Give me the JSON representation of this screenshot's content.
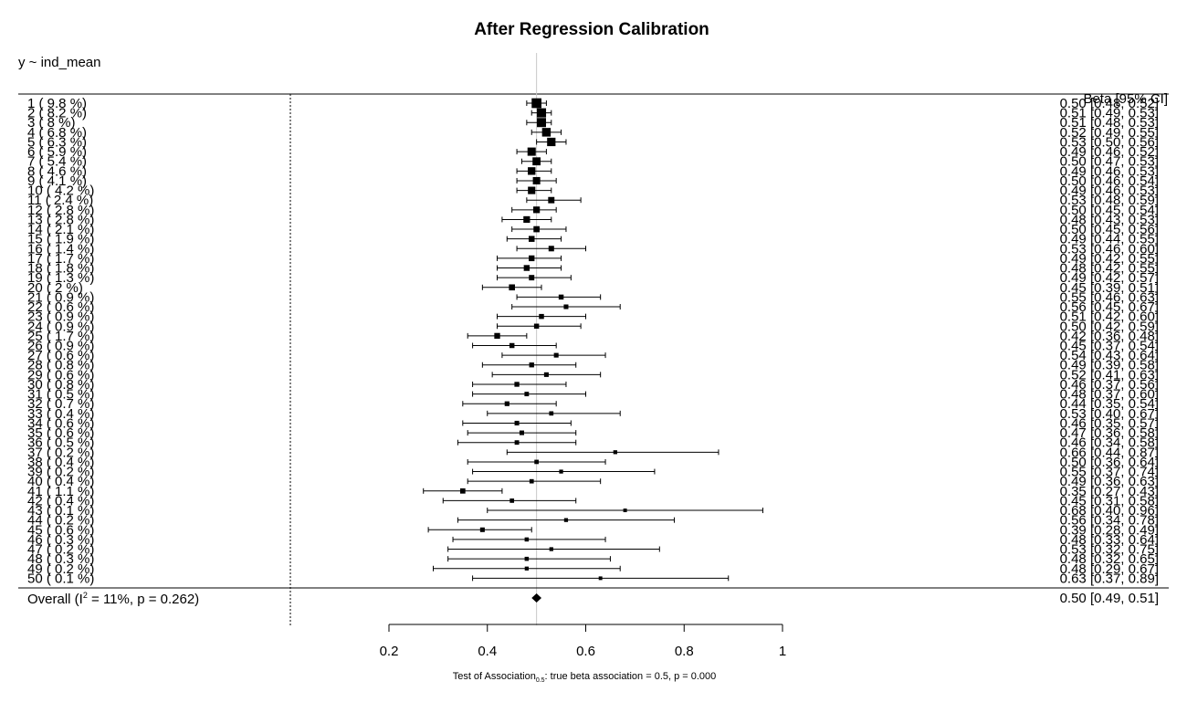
{
  "chart_data": {
    "type": "forest",
    "title": "After Regression Calibration",
    "model": "y ~ ind_mean",
    "estimate_header": "Beta [95% CI]",
    "reference_line": 0.5,
    "xlim": [
      0.2,
      1
    ],
    "xticks": [
      0.2,
      0.4,
      0.6,
      0.8,
      1
    ],
    "xtick_labels": [
      "0.2",
      "0.4",
      "0.6",
      "0.8",
      "1"
    ],
    "xlabel": {
      "prefix": "Test of Association",
      "subscript": "0.5",
      "suffix": ": true beta association = 0.5, p = 0.000"
    },
    "rows": [
      {
        "label": "1  ( 9.8 %)",
        "estimate": 0.5,
        "lower": 0.48,
        "upper": 0.52,
        "weight": 9.8,
        "text": "0.50 [0.48, 0.52]"
      },
      {
        "label": "2  ( 8.2 %)",
        "estimate": 0.51,
        "lower": 0.49,
        "upper": 0.53,
        "weight": 8.2,
        "text": "0.51 [0.49, 0.53]"
      },
      {
        "label": "3  ( 8 %)",
        "estimate": 0.51,
        "lower": 0.48,
        "upper": 0.53,
        "weight": 8.0,
        "text": "0.51 [0.48, 0.53]"
      },
      {
        "label": "4  ( 6.8 %)",
        "estimate": 0.52,
        "lower": 0.49,
        "upper": 0.55,
        "weight": 6.8,
        "text": "0.52 [0.49, 0.55]"
      },
      {
        "label": "5  ( 6.3 %)",
        "estimate": 0.53,
        "lower": 0.5,
        "upper": 0.56,
        "weight": 6.3,
        "text": "0.53 [0.50, 0.56]"
      },
      {
        "label": "6  ( 5.9 %)",
        "estimate": 0.49,
        "lower": 0.46,
        "upper": 0.52,
        "weight": 5.9,
        "text": "0.49 [0.46, 0.52]"
      },
      {
        "label": "7  ( 5.4 %)",
        "estimate": 0.5,
        "lower": 0.47,
        "upper": 0.53,
        "weight": 5.4,
        "text": "0.50 [0.47, 0.53]"
      },
      {
        "label": "8  ( 4.6 %)",
        "estimate": 0.49,
        "lower": 0.46,
        "upper": 0.53,
        "weight": 4.6,
        "text": "0.49 [0.46, 0.53]"
      },
      {
        "label": "9  ( 4.1 %)",
        "estimate": 0.5,
        "lower": 0.46,
        "upper": 0.54,
        "weight": 4.1,
        "text": "0.50 [0.46, 0.54]"
      },
      {
        "label": "10  ( 4.2 %)",
        "estimate": 0.49,
        "lower": 0.46,
        "upper": 0.53,
        "weight": 4.2,
        "text": "0.49 [0.46, 0.53]"
      },
      {
        "label": "11  ( 2.4 %)",
        "estimate": 0.53,
        "lower": 0.48,
        "upper": 0.59,
        "weight": 2.4,
        "text": "0.53 [0.48, 0.59]"
      },
      {
        "label": "12  ( 2.8 %)",
        "estimate": 0.5,
        "lower": 0.45,
        "upper": 0.54,
        "weight": 2.8,
        "text": "0.50 [0.45, 0.54]"
      },
      {
        "label": "13  ( 2.8 %)",
        "estimate": 0.48,
        "lower": 0.43,
        "upper": 0.53,
        "weight": 2.8,
        "text": "0.48 [0.43, 0.53]"
      },
      {
        "label": "14  ( 2.1 %)",
        "estimate": 0.5,
        "lower": 0.45,
        "upper": 0.56,
        "weight": 2.1,
        "text": "0.50 [0.45, 0.56]"
      },
      {
        "label": "15  ( 1.9 %)",
        "estimate": 0.49,
        "lower": 0.44,
        "upper": 0.55,
        "weight": 1.9,
        "text": "0.49 [0.44, 0.55]"
      },
      {
        "label": "16  ( 1.4 %)",
        "estimate": 0.53,
        "lower": 0.46,
        "upper": 0.6,
        "weight": 1.4,
        "text": "0.53 [0.46, 0.60]"
      },
      {
        "label": "17  ( 1.7 %)",
        "estimate": 0.49,
        "lower": 0.42,
        "upper": 0.55,
        "weight": 1.7,
        "text": "0.49 [0.42, 0.55]"
      },
      {
        "label": "18  ( 1.8 %)",
        "estimate": 0.48,
        "lower": 0.42,
        "upper": 0.55,
        "weight": 1.8,
        "text": "0.48 [0.42, 0.55]"
      },
      {
        "label": "19  ( 1.3 %)",
        "estimate": 0.49,
        "lower": 0.42,
        "upper": 0.57,
        "weight": 1.3,
        "text": "0.49 [0.42, 0.57]"
      },
      {
        "label": "20  ( 2 %)",
        "estimate": 0.45,
        "lower": 0.39,
        "upper": 0.51,
        "weight": 2.0,
        "text": "0.45 [0.39, 0.51]"
      },
      {
        "label": "21  ( 0.9 %)",
        "estimate": 0.55,
        "lower": 0.46,
        "upper": 0.63,
        "weight": 0.9,
        "text": "0.55 [0.46, 0.63]"
      },
      {
        "label": "22  ( 0.6 %)",
        "estimate": 0.56,
        "lower": 0.45,
        "upper": 0.67,
        "weight": 0.6,
        "text": "0.56 [0.45, 0.67]"
      },
      {
        "label": "23  ( 0.9 %)",
        "estimate": 0.51,
        "lower": 0.42,
        "upper": 0.6,
        "weight": 0.9,
        "text": "0.51 [0.42, 0.60]"
      },
      {
        "label": "24  ( 0.9 %)",
        "estimate": 0.5,
        "lower": 0.42,
        "upper": 0.59,
        "weight": 0.9,
        "text": "0.50 [0.42, 0.59]"
      },
      {
        "label": "25  ( 1.7 %)",
        "estimate": 0.42,
        "lower": 0.36,
        "upper": 0.48,
        "weight": 1.7,
        "text": "0.42 [0.36, 0.48]"
      },
      {
        "label": "26  ( 0.9 %)",
        "estimate": 0.45,
        "lower": 0.37,
        "upper": 0.54,
        "weight": 0.9,
        "text": "0.45 [0.37, 0.54]"
      },
      {
        "label": "27  ( 0.6 %)",
        "estimate": 0.54,
        "lower": 0.43,
        "upper": 0.64,
        "weight": 0.6,
        "text": "0.54 [0.43, 0.64]"
      },
      {
        "label": "28  ( 0.8 %)",
        "estimate": 0.49,
        "lower": 0.39,
        "upper": 0.58,
        "weight": 0.8,
        "text": "0.49 [0.39, 0.58]"
      },
      {
        "label": "29  ( 0.6 %)",
        "estimate": 0.52,
        "lower": 0.41,
        "upper": 0.63,
        "weight": 0.6,
        "text": "0.52 [0.41, 0.63]"
      },
      {
        "label": "30  ( 0.8 %)",
        "estimate": 0.46,
        "lower": 0.37,
        "upper": 0.56,
        "weight": 0.8,
        "text": "0.46 [0.37, 0.56]"
      },
      {
        "label": "31  ( 0.5 %)",
        "estimate": 0.48,
        "lower": 0.37,
        "upper": 0.6,
        "weight": 0.5,
        "text": "0.48 [0.37, 0.60]"
      },
      {
        "label": "32  ( 0.7 %)",
        "estimate": 0.44,
        "lower": 0.35,
        "upper": 0.54,
        "weight": 0.7,
        "text": "0.44 [0.35, 0.54]"
      },
      {
        "label": "33  ( 0.4 %)",
        "estimate": 0.53,
        "lower": 0.4,
        "upper": 0.67,
        "weight": 0.4,
        "text": "0.53 [0.40, 0.67]"
      },
      {
        "label": "34  ( 0.6 %)",
        "estimate": 0.46,
        "lower": 0.35,
        "upper": 0.57,
        "weight": 0.6,
        "text": "0.46 [0.35, 0.57]"
      },
      {
        "label": "35  ( 0.6 %)",
        "estimate": 0.47,
        "lower": 0.36,
        "upper": 0.58,
        "weight": 0.6,
        "text": "0.47 [0.36, 0.58]"
      },
      {
        "label": "36  ( 0.5 %)",
        "estimate": 0.46,
        "lower": 0.34,
        "upper": 0.58,
        "weight": 0.5,
        "text": "0.46 [0.34, 0.58]"
      },
      {
        "label": "37  ( 0.2 %)",
        "estimate": 0.66,
        "lower": 0.44,
        "upper": 0.87,
        "weight": 0.2,
        "text": "0.66 [0.44, 0.87]"
      },
      {
        "label": "38  ( 0.4 %)",
        "estimate": 0.5,
        "lower": 0.36,
        "upper": 0.64,
        "weight": 0.4,
        "text": "0.50 [0.36, 0.64]"
      },
      {
        "label": "39  ( 0.2 %)",
        "estimate": 0.55,
        "lower": 0.37,
        "upper": 0.74,
        "weight": 0.2,
        "text": "0.55 [0.37, 0.74]"
      },
      {
        "label": "40  ( 0.4 %)",
        "estimate": 0.49,
        "lower": 0.36,
        "upper": 0.63,
        "weight": 0.4,
        "text": "0.49 [0.36, 0.63]"
      },
      {
        "label": "41  ( 1.1 %)",
        "estimate": 0.35,
        "lower": 0.27,
        "upper": 0.43,
        "weight": 1.1,
        "text": "0.35 [0.27, 0.43]"
      },
      {
        "label": "42  ( 0.4 %)",
        "estimate": 0.45,
        "lower": 0.31,
        "upper": 0.58,
        "weight": 0.4,
        "text": "0.45 [0.31, 0.58]"
      },
      {
        "label": "43  ( 0.1 %)",
        "estimate": 0.68,
        "lower": 0.4,
        "upper": 0.96,
        "weight": 0.1,
        "text": "0.68 [0.40, 0.96]"
      },
      {
        "label": "44  ( 0.2 %)",
        "estimate": 0.56,
        "lower": 0.34,
        "upper": 0.78,
        "weight": 0.2,
        "text": "0.56 [0.34, 0.78]"
      },
      {
        "label": "45  ( 0.6 %)",
        "estimate": 0.39,
        "lower": 0.28,
        "upper": 0.49,
        "weight": 0.6,
        "text": "0.39 [0.28, 0.49]"
      },
      {
        "label": "46  ( 0.3 %)",
        "estimate": 0.48,
        "lower": 0.33,
        "upper": 0.64,
        "weight": 0.3,
        "text": "0.48 [0.33, 0.64]"
      },
      {
        "label": "47  ( 0.2 %)",
        "estimate": 0.53,
        "lower": 0.32,
        "upper": 0.75,
        "weight": 0.2,
        "text": "0.53 [0.32, 0.75]"
      },
      {
        "label": "48  ( 0.3 %)",
        "estimate": 0.48,
        "lower": 0.32,
        "upper": 0.65,
        "weight": 0.3,
        "text": "0.48 [0.32, 0.65]"
      },
      {
        "label": "49  ( 0.2 %)",
        "estimate": 0.48,
        "lower": 0.29,
        "upper": 0.67,
        "weight": 0.2,
        "text": "0.48 [0.29, 0.67]"
      },
      {
        "label": "50  ( 0.1 %)",
        "estimate": 0.63,
        "lower": 0.37,
        "upper": 0.89,
        "weight": 0.1,
        "text": "0.63 [0.37, 0.89]"
      }
    ],
    "overall": {
      "label_prefix": "Overall (I",
      "label_sup": "2",
      "label_suffix": " = 11%, p = 0.262)",
      "estimate": 0.5,
      "lower": 0.49,
      "upper": 0.51,
      "text": "0.50 [0.49, 0.51]"
    }
  }
}
